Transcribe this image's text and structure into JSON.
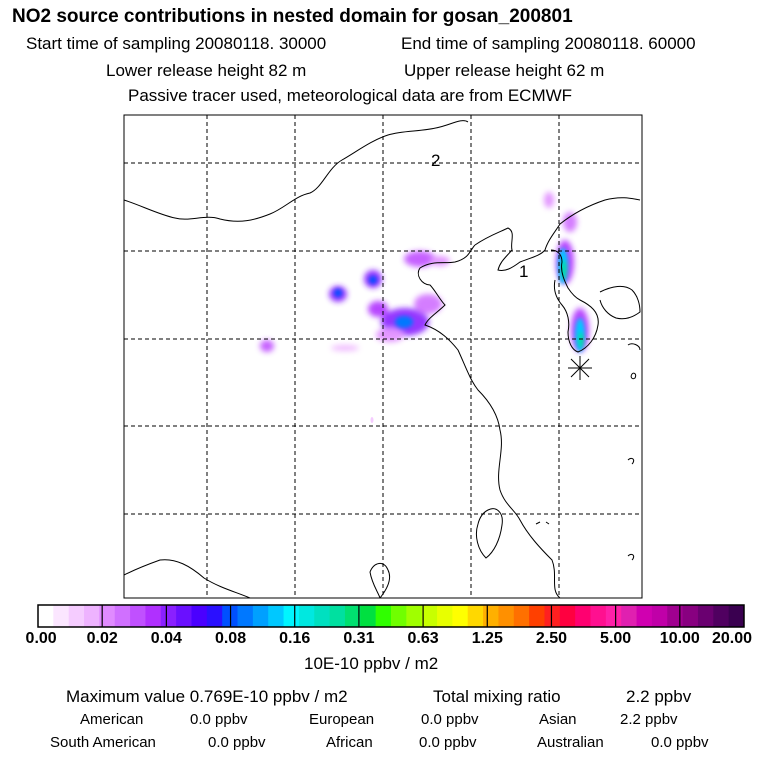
{
  "header": {
    "title": "NO2 source contributions in nested domain for gosan_200801",
    "start_time": "Start time of sampling 20080118. 30000",
    "end_time": "End time of sampling 20080118. 60000",
    "lower_height": "Lower release height   82 m",
    "upper_height": "Upper release height   62 m",
    "note": "Passive tracer used, meteorological data are from ECMWF"
  },
  "map": {
    "domain_labels": [
      "1",
      "2"
    ],
    "receptor_marker": "asterisk-icon"
  },
  "colorbar": {
    "ticks": [
      "0.00",
      "0.02",
      "0.04",
      "0.08",
      "0.16",
      "0.31",
      "0.63",
      "1.25",
      "2.50",
      "5.00",
      "10.00",
      "20.00"
    ],
    "units": "10E-10 ppbv / m2",
    "colors": [
      "#ffffff",
      "#fbe6ff",
      "#f5ccff",
      "#eeb3ff",
      "#e08bff",
      "#d070ff",
      "#c050ff",
      "#b030ff",
      "#8a20ff",
      "#6a10ff",
      "#4a00ff",
      "#2a10ff",
      "#0050ff",
      "#0078ff",
      "#00a0ff",
      "#00c8ff",
      "#00f5ff",
      "#00e8e0",
      "#00e0c0",
      "#00e0a0",
      "#00e070",
      "#00e040",
      "#30ff00",
      "#70ff00",
      "#a0ff00",
      "#c8ff00",
      "#e8ff00",
      "#ffff00",
      "#ffd800",
      "#ffb000",
      "#ff9000",
      "#ff7000",
      "#ff4000",
      "#ff2020",
      "#ff0040",
      "#ff0070",
      "#ff1090",
      "#ff20a8",
      "#e020b0",
      "#d000b0",
      "#c000a8",
      "#a00090",
      "#880080",
      "#6a0070",
      "#500060",
      "#3a0050"
    ]
  },
  "stats": {
    "max_value": "Maximum value  0.769E-10 ppbv / m2",
    "total_mixing": "Total mixing ratio",
    "total_value": "2.2 ppbv",
    "american_label": "American",
    "american_value": "0.0 ppbv",
    "european_label": "European",
    "european_value": "0.0 ppbv",
    "asian_label": "Asian",
    "asian_value": "2.2 ppbv",
    "south_american_label": "South American",
    "south_american_value": "0.0 ppbv",
    "african_label": "African",
    "african_value": "0.0 ppbv",
    "australian_label": "Australian",
    "australian_value": "0.0 ppbv"
  }
}
